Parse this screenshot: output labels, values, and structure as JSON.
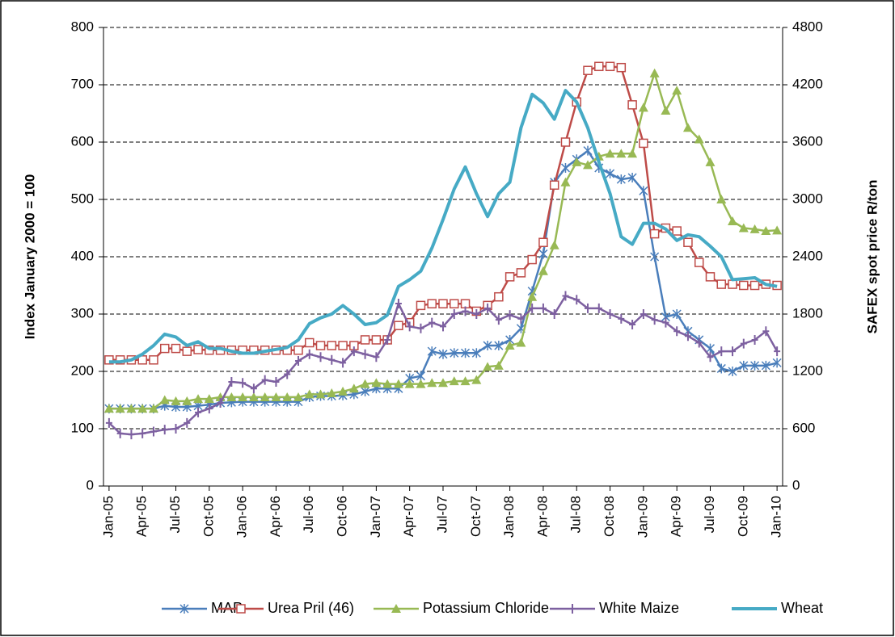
{
  "chart_data": {
    "type": "line",
    "ylabel": "Index January 2000 = 100",
    "y2label": "SAFEX spot price R/ton",
    "ylim": [
      0,
      800
    ],
    "yticks": [
      0,
      100,
      200,
      300,
      400,
      500,
      600,
      700,
      800
    ],
    "y2lim": [
      0,
      4800
    ],
    "y2ticks": [
      0,
      600,
      1200,
      1800,
      2400,
      3000,
      3600,
      4200,
      4800
    ],
    "grid": true,
    "legend": "bottom",
    "categories": [
      "Jan-05",
      null,
      null,
      "Apr-05",
      null,
      null,
      "Jul-05",
      null,
      null,
      "Oct-05",
      null,
      null,
      "Jan-06",
      null,
      null,
      "Apr-06",
      null,
      null,
      "Jul-06",
      null,
      null,
      "Oct-06",
      null,
      null,
      "Jan-07",
      null,
      null,
      "Apr-07",
      null,
      null,
      "Jul-07",
      null,
      null,
      "Oct-07",
      null,
      null,
      "Jan-08",
      null,
      null,
      "Apr-08",
      null,
      null,
      "Jul-08",
      null,
      null,
      "Oct-08",
      null,
      null,
      "Jan-09",
      null,
      null,
      "Apr-09",
      null,
      null,
      "Jul-09",
      null,
      null,
      "Oct-09",
      null,
      null,
      "Jan-10"
    ],
    "series": [
      {
        "name": "MAP",
        "color": "#4a7ebb",
        "marker": "asterisk",
        "values": [
          135,
          135,
          135,
          135,
          135,
          140,
          138,
          138,
          140,
          142,
          145,
          146,
          147,
          147,
          147,
          147,
          147,
          147,
          155,
          157,
          157,
          158,
          160,
          165,
          170,
          170,
          170,
          188,
          192,
          235,
          230,
          232,
          232,
          232,
          245,
          245,
          255,
          275,
          340,
          405,
          530,
          555,
          570,
          585,
          555,
          545,
          535,
          538,
          515,
          400,
          295,
          300,
          270,
          255,
          240,
          205,
          200,
          210,
          210,
          210,
          215
        ]
      },
      {
        "name": "Urea Pril (46)",
        "color": "#be4b48",
        "marker": "square",
        "values": [
          220,
          220,
          220,
          220,
          220,
          240,
          240,
          235,
          238,
          237,
          237,
          237,
          237,
          237,
          237,
          237,
          237,
          237,
          250,
          245,
          245,
          245,
          245,
          255,
          255,
          255,
          280,
          285,
          315,
          318,
          318,
          318,
          318,
          305,
          315,
          330,
          365,
          372,
          395,
          425,
          525,
          600,
          670,
          725,
          732,
          732,
          730,
          665,
          598,
          440,
          450,
          445,
          425,
          390,
          365,
          352,
          352,
          350,
          350,
          352,
          350
        ]
      },
      {
        "name": "Potassium Chloride",
        "color": "#98b954",
        "marker": "triangle",
        "values": [
          135,
          135,
          135,
          135,
          135,
          150,
          148,
          148,
          152,
          152,
          155,
          155,
          155,
          155,
          155,
          155,
          155,
          155,
          160,
          160,
          162,
          165,
          170,
          178,
          180,
          178,
          178,
          178,
          178,
          180,
          180,
          183,
          183,
          185,
          208,
          210,
          245,
          250,
          330,
          375,
          420,
          530,
          565,
          560,
          575,
          580,
          580,
          580,
          660,
          720,
          655,
          690,
          625,
          605,
          565,
          500,
          462,
          450,
          448,
          445,
          446
        ]
      },
      {
        "name": "White Maize",
        "color": "#7d60a0",
        "marker": "plus",
        "axis": "y2",
        "values": [
          660,
          550,
          540,
          550,
          570,
          590,
          600,
          660,
          770,
          810,
          870,
          1090,
          1080,
          1020,
          1110,
          1090,
          1170,
          1310,
          1380,
          1350,
          1320,
          1290,
          1410,
          1380,
          1350,
          1530,
          1910,
          1670,
          1650,
          1710,
          1670,
          1800,
          1830,
          1800,
          1860,
          1740,
          1790,
          1750,
          1860,
          1860,
          1800,
          1990,
          1950,
          1860,
          1860,
          1800,
          1750,
          1690,
          1800,
          1740,
          1710,
          1620,
          1570,
          1500,
          1350,
          1410,
          1410,
          1490,
          1530,
          1620,
          1410
        ]
      },
      {
        "name": "Wheat",
        "color": "#46aac5",
        "marker": "none",
        "axis": "y2",
        "values": [
          1300,
          1300,
          1320,
          1380,
          1470,
          1590,
          1560,
          1470,
          1510,
          1440,
          1440,
          1410,
          1390,
          1390,
          1410,
          1430,
          1450,
          1530,
          1700,
          1760,
          1800,
          1890,
          1800,
          1690,
          1710,
          1790,
          2090,
          2160,
          2250,
          2490,
          2790,
          3110,
          3340,
          3060,
          2820,
          3060,
          3180,
          3750,
          4100,
          4010,
          3840,
          4140,
          4020,
          3750,
          3390,
          3060,
          2610,
          2530,
          2750,
          2750,
          2690,
          2570,
          2630,
          2610,
          2510,
          2400,
          2160,
          2170,
          2180,
          2110,
          2090
        ]
      }
    ]
  }
}
